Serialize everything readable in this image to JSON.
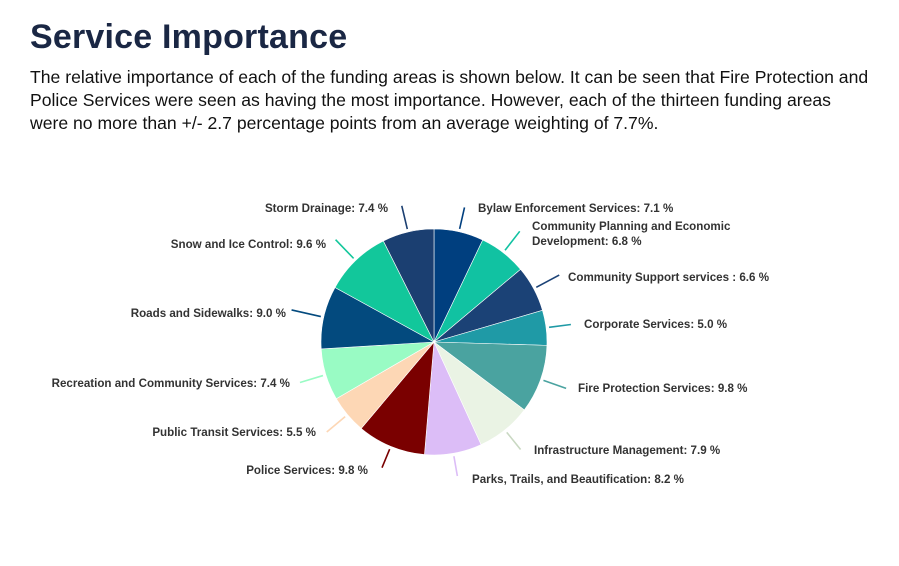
{
  "heading": "Service Importance",
  "description": "The relative importance of each of the funding areas is shown below. It can be seen that Fire Protection and Police Services were seen as having the most importance. However, each of the thirteen funding areas were no more than +/- 2.7 percentage points from an average weighting of 7.7%.",
  "chart_data": {
    "type": "pie",
    "unit": "%",
    "slices": [
      {
        "label": "Bylaw Enforcement Services",
        "value": 7.1,
        "display": "Bylaw Enforcement Services: 7.1 %",
        "display_lines": [
          "Bylaw Enforcement Services: 7.1 %"
        ],
        "color": "#003f7f"
      },
      {
        "label": "Community Planning and Economic Development",
        "value": 6.8,
        "display": "Community Planning and Economic Development: 6.8 %",
        "display_lines": [
          "Community Planning and Economic",
          "Development: 6.8 %"
        ],
        "color": "#11c2a2"
      },
      {
        "label": "Community Support services",
        "value": 6.6,
        "display": "Community Support services : 6.6 %",
        "display_lines": [
          "Community Support services : 6.6 %"
        ],
        "color": "#1b4276"
      },
      {
        "label": "Corporate Services",
        "value": 5.0,
        "display": "Corporate Services: 5.0 %",
        "display_lines": [
          "Corporate Services: 5.0 %"
        ],
        "color": "#1f9aa6"
      },
      {
        "label": "Fire Protection Services",
        "value": 9.8,
        "display": "Fire Protection Services: 9.8 %",
        "display_lines": [
          "Fire Protection Services: 9.8 %"
        ],
        "color": "#4aa3a0"
      },
      {
        "label": "Infrastructure Management",
        "value": 7.9,
        "display": "Infrastructure Management: 7.9 %",
        "display_lines": [
          "Infrastructure Management: 7.9 %"
        ],
        "color": "#eaf3e4"
      },
      {
        "label": "Parks, Trails, and Beautification",
        "value": 8.2,
        "display": "Parks, Trails, and Beautification: 8.2 %",
        "display_lines": [
          "Parks, Trails, and Beautification: 8.2 %"
        ],
        "color": "#dcbdf7"
      },
      {
        "label": "Police Services",
        "value": 9.8,
        "display": "Police Services: 9.8 %",
        "display_lines": [
          "Police Services: 9.8 %"
        ],
        "color": "#7a0000"
      },
      {
        "label": "Public Transit Services",
        "value": 5.5,
        "display": "Public Transit Services: 5.5 %",
        "display_lines": [
          "Public Transit Services: 5.5 %"
        ],
        "color": "#fdd7b5"
      },
      {
        "label": "Recreation and Community Services",
        "value": 7.4,
        "display": "Recreation and Community Services: 7.4 %",
        "display_lines": [
          "Recreation and Community Services: 7.4 %"
        ],
        "color": "#99fbc4"
      },
      {
        "label": "Roads and Sidewalks",
        "value": 9.0,
        "display": "Roads and Sidewalks: 9.0 %",
        "display_lines": [
          "Roads and Sidewalks: 9.0 %"
        ],
        "color": "#034a7e"
      },
      {
        "label": "Snow and Ice Control",
        "value": 9.6,
        "display": "Snow and Ice Control: 9.6 %",
        "display_lines": [
          "Snow and Ice Control: 9.6 %"
        ],
        "color": "#12c79b"
      },
      {
        "label": "Storm Drainage",
        "value": 7.4,
        "display": "Storm Drainage: 7.4 %",
        "display_lines": [
          "Storm Drainage: 7.4 %"
        ],
        "color": "#1b3f71"
      }
    ]
  }
}
